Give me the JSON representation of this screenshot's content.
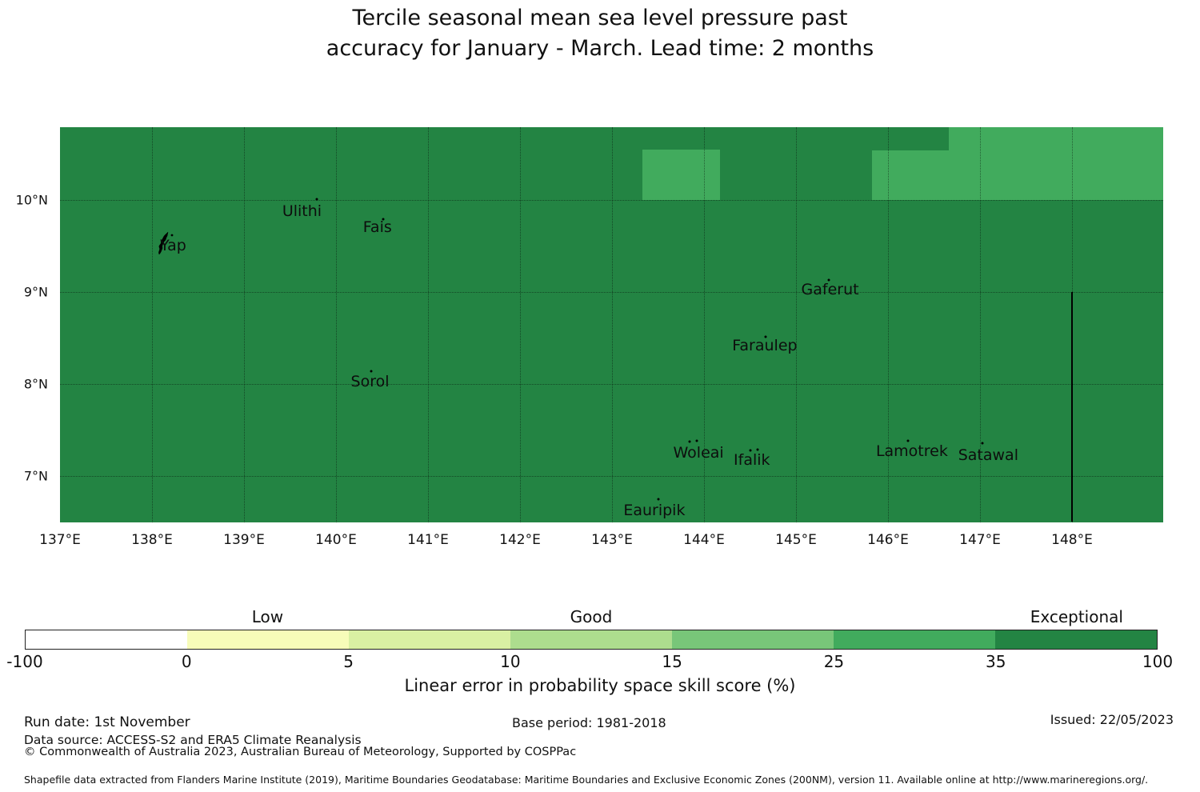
{
  "title": {
    "line1": "Tercile seasonal mean sea level pressure past",
    "line2": "accuracy for January - March. Lead time: 2 months"
  },
  "colorbar_labels": {
    "ticks": [
      "-100",
      "0",
      "5",
      "10",
      "15",
      "25",
      "35",
      "100"
    ],
    "categories": [
      {
        "label": "Low",
        "bin_index": 1
      },
      {
        "label": "Good",
        "bin_index": 3
      },
      {
        "label": "Exceptional",
        "bin_index": 6
      }
    ],
    "caption": "Linear error in probability space skill score (%)"
  },
  "footer": {
    "run_date": "Run date: 1st November",
    "base_period": "Base period: 1981-2018",
    "issued": "Issued: 22/05/2023",
    "data_source": "Data source: ACCESS-S2 and ERA5 Climate Reanalysis",
    "copyright": "© Commonwealth of Australia 2023, Australian Bureau of Meteorology, Supported by COSPPac",
    "shapefile_note": "Shapefile data extracted from Flanders Marine Institute (2019), Maritime Boundaries Geodatabase: Maritime Boundaries and Exclusive Economic Zones (200NM), version 11. Available online at http://www.marineregions.org/."
  },
  "chart_data": {
    "type": "heatmap",
    "title": "Tercile seasonal mean sea level pressure past accuracy for January - March. Lead time: 2 months",
    "x": {
      "unit": "°E",
      "range": [
        137,
        149.0
      ],
      "ticks": [
        137,
        138,
        139,
        140,
        141,
        142,
        143,
        144,
        145,
        146,
        147,
        148
      ],
      "tick_labels": [
        "137°E",
        "138°E",
        "139°E",
        "140°E",
        "141°E",
        "142°E",
        "143°E",
        "144°E",
        "145°E",
        "146°E",
        "147°E",
        "148°E"
      ]
    },
    "y": {
      "unit": "°N",
      "range": [
        6.5,
        10.79
      ],
      "ticks": [
        10,
        9,
        8,
        7
      ],
      "tick_labels": [
        "10°N",
        "9°N",
        "8°N",
        "7°N"
      ]
    },
    "grid": true,
    "colorbar": {
      "caption": "Linear error in probability space skill score (%)",
      "bin_edges": [
        -100,
        0,
        5,
        10,
        15,
        25,
        35,
        100
      ],
      "colors": [
        "#ffffff",
        "#f7fcb9",
        "#d9f0a3",
        "#addd8e",
        "#78c679",
        "#41ab5d",
        "#238443"
      ],
      "category_labels": [
        "Low",
        "Good",
        "Exceptional"
      ],
      "category_bins": [
        "0-5",
        "10-15",
        "35-100"
      ]
    },
    "base_region": {
      "value_bin": "35-100",
      "color": "#238443",
      "note": "entire map area"
    },
    "patches": [
      {
        "value_bin": "25-35",
        "color": "#41ab5d",
        "lon": [
          143.33,
          144.17
        ],
        "lat": [
          10.0,
          10.55
        ]
      },
      {
        "value_bin": "25-35",
        "color": "#41ab5d",
        "lon": [
          145.83,
          146.66
        ],
        "lat": [
          10.0,
          10.54
        ]
      },
      {
        "value_bin": "25-35",
        "color": "#41ab5d",
        "lon": [
          146.66,
          149.0
        ],
        "lat": [
          10.0,
          10.79
        ]
      }
    ],
    "boundary_line": {
      "lon": 148.0,
      "lat": [
        6.5,
        9.0
      ],
      "color": "#000000"
    },
    "islands": [
      {
        "name": "Yap",
        "label": [
          138.23,
          9.5
        ],
        "markers": [
          [
            138.24,
            9.58
          ]
        ],
        "shape": "yap"
      },
      {
        "name": "Ulithi",
        "label": [
          139.63,
          9.88
        ],
        "markers": [
          [
            139.79,
            10.01
          ]
        ]
      },
      {
        "name": "Fais",
        "label": [
          140.45,
          9.7
        ],
        "markers": [
          [
            140.51,
            9.79
          ]
        ]
      },
      {
        "name": "Sorol",
        "label": [
          140.37,
          8.03
        ],
        "markers": [
          [
            140.38,
            8.14
          ]
        ]
      },
      {
        "name": "Gaferut",
        "label": [
          145.37,
          9.03
        ],
        "markers": [
          [
            145.36,
            9.13
          ]
        ]
      },
      {
        "name": "Faraulep",
        "label": [
          144.66,
          8.42
        ],
        "markers": [
          [
            144.67,
            8.51
          ]
        ]
      },
      {
        "name": "Woleai",
        "label": [
          143.94,
          7.25
        ],
        "markers": [
          [
            143.84,
            7.37
          ],
          [
            143.92,
            7.38
          ]
        ]
      },
      {
        "name": "Ifalik",
        "label": [
          144.52,
          7.17
        ],
        "markers": [
          [
            144.5,
            7.28
          ],
          [
            144.58,
            7.29
          ]
        ]
      },
      {
        "name": "Lamotrek",
        "label": [
          146.26,
          7.27
        ],
        "markers": [
          [
            146.22,
            7.38
          ]
        ]
      },
      {
        "name": "Satawal",
        "label": [
          147.09,
          7.23
        ],
        "markers": [
          [
            147.03,
            7.36
          ]
        ]
      },
      {
        "name": "Eauripik",
        "label": [
          143.46,
          6.63
        ],
        "markers": [
          [
            143.5,
            6.75
          ]
        ]
      }
    ]
  }
}
